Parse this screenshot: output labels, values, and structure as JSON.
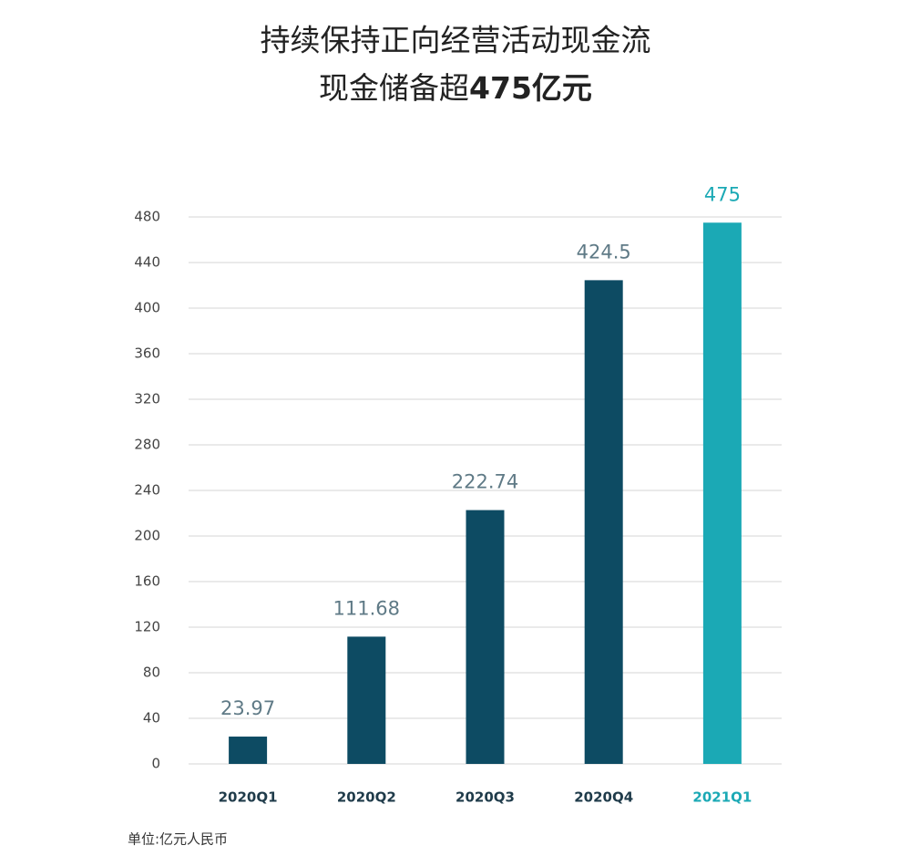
{
  "chart_data": {
    "type": "bar",
    "title": "持续保持正向经营活动现金流",
    "subtitle": [
      "现金储备超",
      "475亿元"
    ],
    "categories": [
      "2020Q1",
      "2020Q2",
      "2020Q3",
      "2020Q4",
      "2021Q1"
    ],
    "values": [
      23.97,
      111.68,
      222.74,
      424.5,
      475
    ],
    "colors": [
      "#0d4b63",
      "#0d4b63",
      "#0d4b63",
      "#0d4b63",
      "#1ba9b5"
    ],
    "value_label_colors": [
      "#5f7a86",
      "#5f7a86",
      "#5f7a86",
      "#5f7a86",
      "#1ba9b5"
    ],
    "ylim": [
      0,
      480
    ],
    "yticks": [
      0,
      40,
      80,
      120,
      160,
      200,
      240,
      280,
      320,
      360,
      400,
      440,
      480
    ],
    "grid": true,
    "note": "单位:亿元人民币"
  }
}
